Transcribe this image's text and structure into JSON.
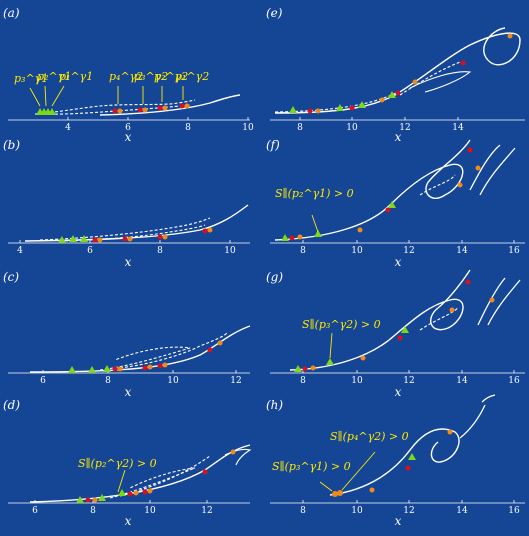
{
  "panels": [
    {
      "id": "a",
      "label": "(a)",
      "xlabel": "x",
      "ticks": [
        "4",
        "6",
        "8",
        "10"
      ],
      "annotations": [
        "p₃^γ1",
        "p₂^γ1",
        "p₁^γ1",
        "p₄^γ2",
        "p₃^γ2",
        "p₂^γ2",
        "p₁^γ2"
      ]
    },
    {
      "id": "b",
      "label": "(b)",
      "xlabel": "x",
      "ticks": [
        "4",
        "6",
        "8",
        "10"
      ],
      "annotations": []
    },
    {
      "id": "c",
      "label": "(c)",
      "xlabel": "x",
      "ticks": [
        "6",
        "8",
        "10",
        "12"
      ],
      "annotations": []
    },
    {
      "id": "d",
      "label": "(d)",
      "xlabel": "x",
      "ticks": [
        "6",
        "8",
        "10",
        "12"
      ],
      "annotations": [
        "S∥(p₂^γ2) > 0"
      ]
    },
    {
      "id": "e",
      "label": "(e)",
      "xlabel": "x",
      "ticks": [
        "8",
        "10",
        "12",
        "14"
      ],
      "annotations": []
    },
    {
      "id": "f",
      "label": "(f)",
      "xlabel": "x",
      "ticks": [
        "8",
        "10",
        "12",
        "14",
        "16"
      ],
      "annotations": [
        "S∥(p₂^γ1) > 0"
      ]
    },
    {
      "id": "g",
      "label": "(g)",
      "xlabel": "x",
      "ticks": [
        "8",
        "10",
        "12",
        "14",
        "16"
      ],
      "annotations": [
        "S∥(p₃^γ2) > 0"
      ]
    },
    {
      "id": "h",
      "label": "(h)",
      "xlabel": "x",
      "ticks": [
        "8",
        "10",
        "12",
        "14",
        "16"
      ],
      "annotations": [
        "S∥(p₄^γ2) > 0",
        "S∥(p₃^γ1) > 0"
      ]
    }
  ],
  "colors": {
    "background": "#154595",
    "curve": "#ffffff",
    "triangle": "#7cd91a",
    "dot_red": "#d6101e",
    "dot_orange": "#f28a1a",
    "annotation": "#ffea00"
  }
}
